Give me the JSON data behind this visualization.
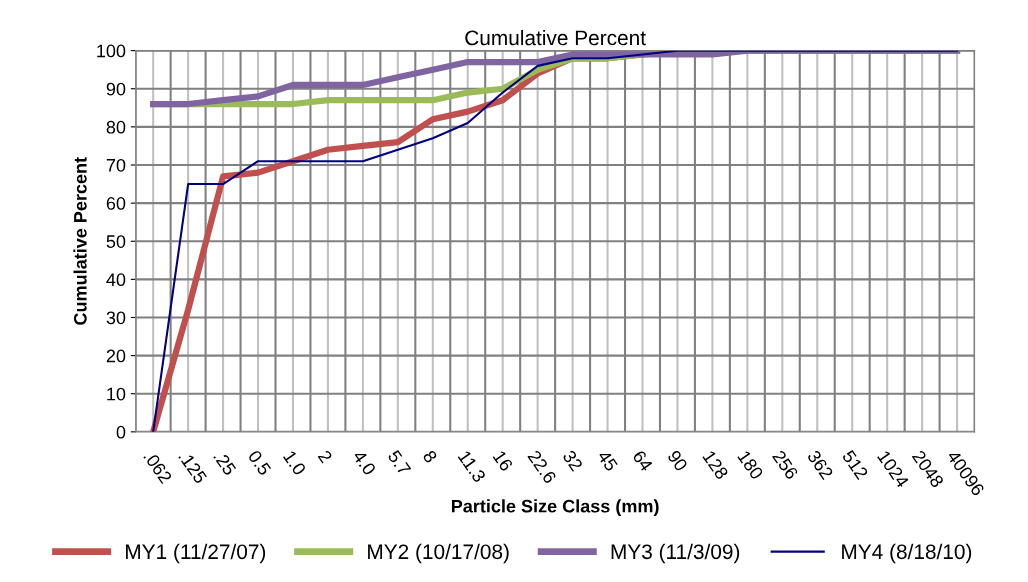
{
  "chart_data": {
    "type": "line",
    "title": "Cumulative Percent",
    "xlabel": "Particle Size Class (mm)",
    "ylabel": "Cumulative Percent",
    "categories": [
      ".062",
      ".125",
      ".25",
      "0.5",
      "1.0",
      "2",
      "4.0",
      "5.7",
      "8",
      "11.3",
      "16",
      "22.6",
      "32",
      "45",
      "64",
      "90",
      "128",
      "180",
      "256",
      "362",
      "512",
      "1024",
      "2048",
      "40096"
    ],
    "ylim": [
      0,
      100
    ],
    "yticks": [
      0,
      10,
      20,
      30,
      40,
      50,
      60,
      70,
      80,
      90,
      100
    ],
    "grid": true,
    "legend": "bottom",
    "marker": "none",
    "line_style": "solid",
    "series": [
      {
        "name": "MY1 (11/27/07)",
        "color": "#c0504d",
        "values": [
          0,
          32,
          67,
          68,
          71,
          74,
          75,
          76,
          82,
          84,
          87,
          94,
          98,
          98,
          99,
          100,
          null,
          null,
          null,
          null,
          null,
          null,
          null,
          null
        ]
      },
      {
        "name": "MY2 (10/17/08)",
        "color": "#9bbb59",
        "values": [
          86,
          86,
          86,
          86,
          86,
          87,
          87,
          87,
          87,
          89,
          90,
          95,
          98,
          98,
          99,
          100,
          100,
          100,
          100,
          100,
          100,
          100,
          100,
          100
        ]
      },
      {
        "name": "MY3 (11/3/09)",
        "color": "#8064a2",
        "values": [
          86,
          86,
          87,
          88,
          91,
          91,
          91,
          93,
          95,
          97,
          97,
          97,
          99,
          99,
          99,
          99,
          99,
          100,
          100,
          100,
          100,
          100,
          100,
          100
        ]
      },
      {
        "name": "MY4 (8/18/10)",
        "color": "#000080",
        "values": [
          0,
          65,
          65,
          71,
          71,
          71,
          71,
          74,
          77,
          81,
          89,
          96,
          98,
          98,
          99,
          100,
          100,
          100,
          100,
          100,
          100,
          100,
          100,
          100
        ]
      }
    ]
  }
}
